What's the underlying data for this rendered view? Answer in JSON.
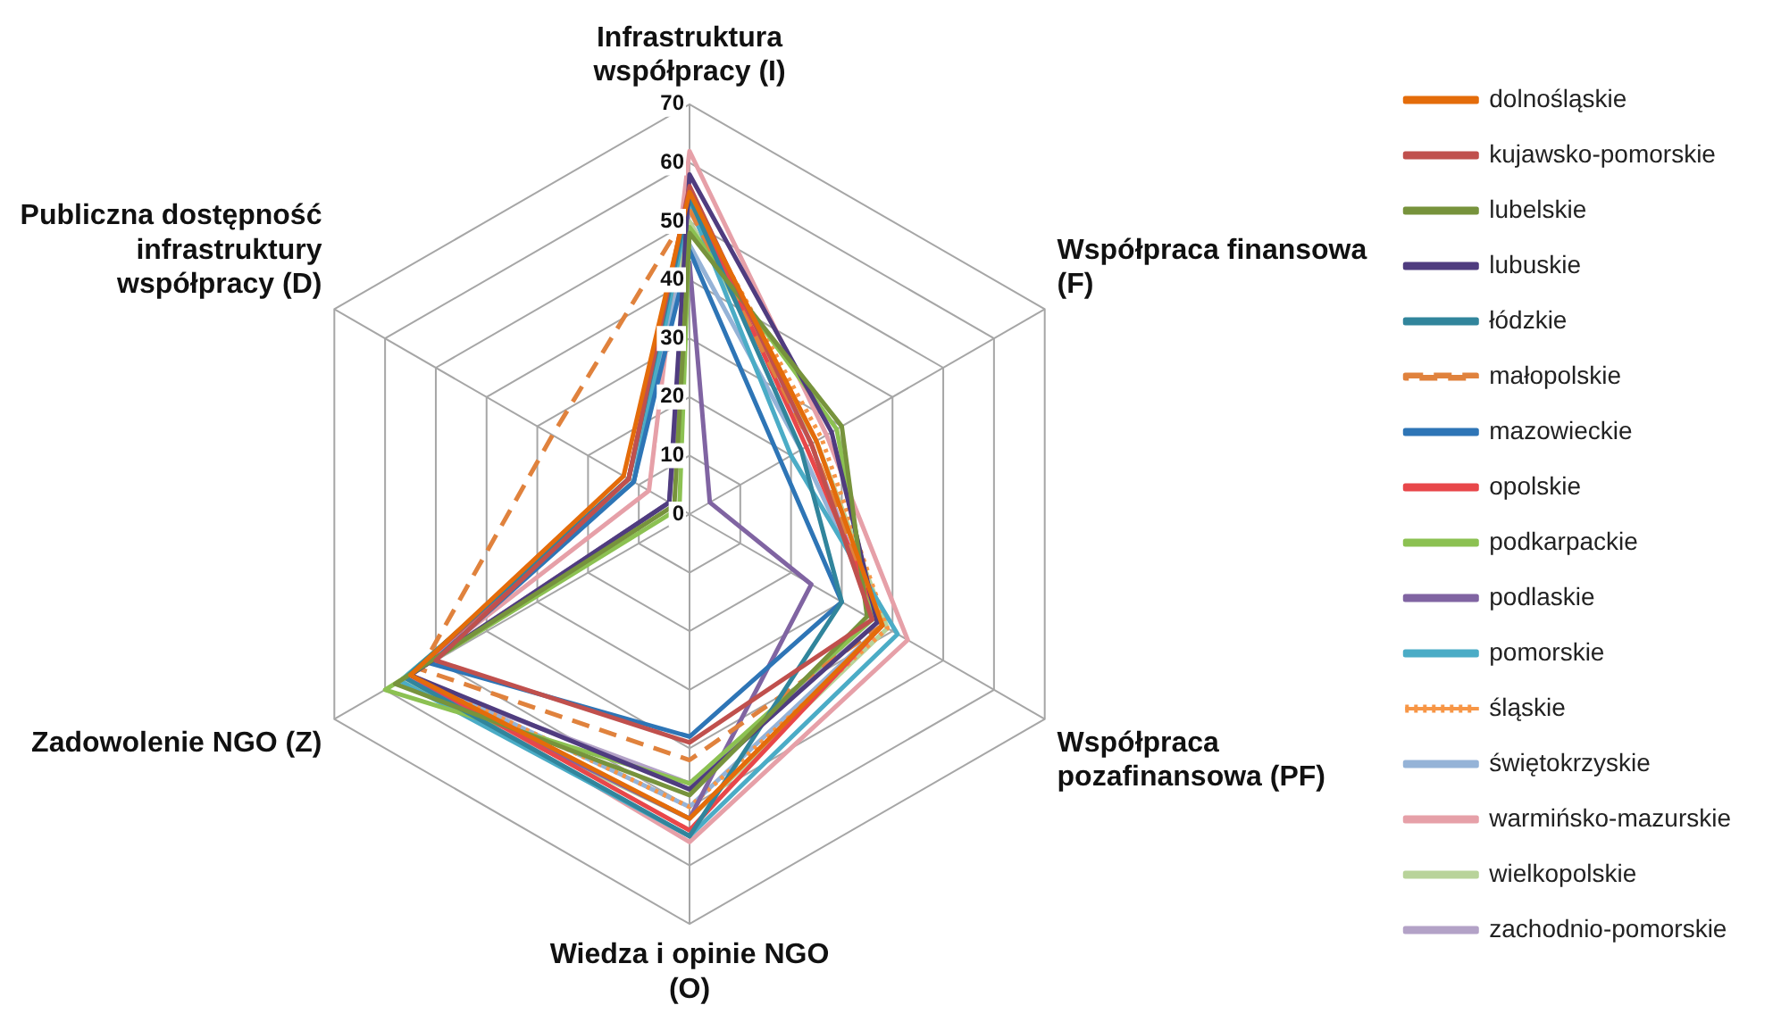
{
  "chart_data": {
    "type": "radar",
    "categories": [
      "Infrastruktura współpracy (I)",
      "Współpraca finansowa (F)",
      "Współpraca pozafinansowa (PF)",
      "Wiedza i opinie NGO (O)",
      "Zadowolenie NGO (Z)",
      "Publiczna dostępność infrastruktury współpracy (D)"
    ],
    "ylim": [
      0,
      70
    ],
    "yticks": [
      0,
      10,
      20,
      30,
      40,
      50,
      60,
      70
    ],
    "grid": true,
    "legend": "right",
    "marker": "none",
    "series": [
      {
        "name": "dolnośląskie",
        "color": "#e46c0a",
        "values": [
          55,
          25,
          38,
          52,
          55,
          13
        ]
      },
      {
        "name": "kujawsko-pomorskie",
        "color": "#c0504d",
        "values": [
          56,
          24,
          36,
          39,
          50,
          12
        ]
      },
      {
        "name": "lubelskie",
        "color": "#77933c",
        "values": [
          48,
          30,
          35,
          48,
          58,
          3
        ]
      },
      {
        "name": "lubuskie",
        "color": "#4f3c7f",
        "values": [
          58,
          28,
          37,
          47,
          55,
          4
        ]
      },
      {
        "name": "łódzkie",
        "color": "#31859c",
        "values": [
          54,
          22,
          30,
          55,
          56,
          12
        ]
      },
      {
        "name": "małopolskie",
        "color": "#e0823d",
        "line_style": "dashed",
        "values": [
          52,
          24,
          38,
          42,
          53,
          27
        ]
      },
      {
        "name": "mazowieckie",
        "color": "#2e75b6",
        "values": [
          45,
          18,
          30,
          38,
          51,
          11
        ]
      },
      {
        "name": "opolskie",
        "color": "#e8474a",
        "values": [
          55,
          23,
          38,
          54,
          55,
          12
        ]
      },
      {
        "name": "podkarpackie",
        "color": "#8cc152",
        "values": [
          49,
          29,
          36,
          46,
          60,
          2
        ]
      },
      {
        "name": "podlaskie",
        "color": "#8064a2",
        "values": [
          43,
          4,
          24,
          52,
          56,
          4
        ]
      },
      {
        "name": "pomorskie",
        "color": "#4bacc6",
        "values": [
          53,
          20,
          41,
          55,
          57,
          11
        ]
      },
      {
        "name": "śląskie",
        "color": "#f79646",
        "line_style": "dotted",
        "values": [
          54,
          26,
          39,
          50,
          55,
          12
        ]
      },
      {
        "name": "świętokrzyskie",
        "color": "#95b3d7",
        "values": [
          46,
          22,
          38,
          50,
          55,
          12
        ]
      },
      {
        "name": "warmińsko-mazurskie",
        "color": "#e6a0a8",
        "values": [
          62,
          27,
          43,
          56,
          55,
          8
        ]
      },
      {
        "name": "wielkopolskie",
        "color": "#b8d39a",
        "values": [
          50,
          25,
          39,
          52,
          57,
          11
        ]
      },
      {
        "name": "zachodnio-pomorskie",
        "color": "#b3a2c7",
        "values": [
          52,
          24,
          37,
          46,
          56,
          11
        ]
      }
    ]
  }
}
